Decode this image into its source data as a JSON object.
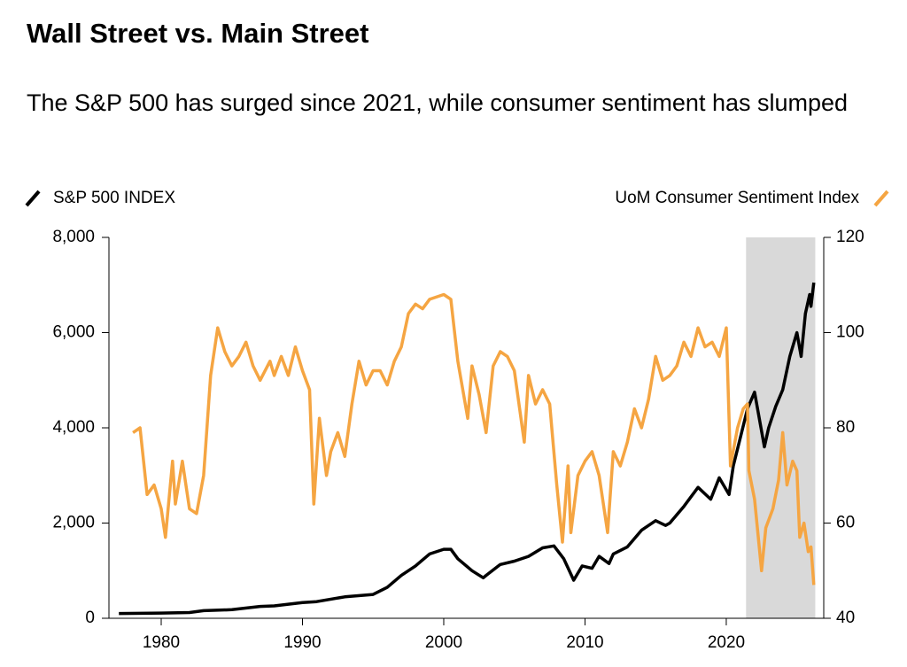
{
  "chart_data": {
    "type": "line",
    "title": "Wall Street vs. Main Street",
    "subtitle": "The S&P 500 has surged since 2021, while consumer sentiment has slumped",
    "xlim": [
      1976.3,
      2026.9
    ],
    "xticks": [
      1980,
      1990,
      2000,
      2010,
      2020
    ],
    "ylim": [
      0,
      8000
    ],
    "yticks": [
      0,
      {
        "value": 2000,
        "label": "2,000"
      },
      {
        "value": 4000,
        "label": "4,000"
      },
      {
        "value": 6000,
        "label": "6,000"
      },
      {
        "value": 8000,
        "label": "8,000"
      }
    ],
    "y2lim": [
      40,
      120
    ],
    "y2ticks": [
      40,
      60,
      80,
      100,
      120
    ],
    "shaded_xlim": [
      2021.4,
      2026.3
    ],
    "series": [
      {
        "name": "S&P 500 INDEX",
        "color": "#000000",
        "axis": "y",
        "x": [
          1977,
          1980,
          1982,
          1983,
          1985,
          1987,
          1988,
          1990,
          1991,
          1993,
          1995,
          1996,
          1997,
          1998,
          1999,
          2000,
          2000.5,
          2001,
          2002,
          2002.8,
          2003,
          2004,
          2005,
          2006,
          2007,
          2007.8,
          2008.5,
          2009.2,
          2009.8,
          2010.5,
          2011,
          2011.7,
          2012,
          2013,
          2014,
          2015,
          2015.7,
          2016,
          2017,
          2018,
          2018.9,
          2019.5,
          2020.2,
          2020.5,
          2021,
          2021.5,
          2022,
          2022.7,
          2023,
          2023.5,
          2024,
          2024.5,
          2025,
          2025.3,
          2025.6,
          2025.9,
          2026,
          2026.2
        ],
        "values": [
          100,
          110,
          120,
          160,
          180,
          250,
          260,
          330,
          350,
          450,
          500,
          650,
          900,
          1100,
          1350,
          1450,
          1450,
          1250,
          1000,
          850,
          900,
          1130,
          1200,
          1300,
          1480,
          1520,
          1250,
          800,
          1100,
          1050,
          1300,
          1150,
          1350,
          1500,
          1850,
          2050,
          1950,
          2000,
          2350,
          2750,
          2500,
          2950,
          2600,
          3200,
          3800,
          4400,
          4750,
          3600,
          4000,
          4450,
          4800,
          5500,
          6000,
          5500,
          6400,
          6800,
          6550,
          7050
        ]
      },
      {
        "name": "UoM Consumer Sentiment Index",
        "color": "#f5a542",
        "axis": "y2",
        "x": [
          1978,
          1978.5,
          1979,
          1979.5,
          1980,
          1980.3,
          1980.8,
          1981,
          1981.5,
          1982,
          1982.5,
          1983,
          1983.5,
          1984,
          1984.5,
          1985,
          1985.5,
          1986,
          1986.5,
          1987,
          1987.7,
          1988,
          1988.5,
          1989,
          1989.5,
          1990,
          1990.5,
          1990.8,
          1991.2,
          1991.7,
          1992,
          1992.5,
          1993,
          1993.5,
          1994,
          1994.5,
          1995,
          1995.5,
          1996,
          1996.5,
          1997,
          1997.5,
          1998,
          1998.5,
          1999,
          2000,
          2000.5,
          2001,
          2001.7,
          2002,
          2002.5,
          2003,
          2003.5,
          2004,
          2004.5,
          2005,
          2005.7,
          2006,
          2006.5,
          2007,
          2007.5,
          2008,
          2008.4,
          2008.8,
          2009,
          2009.5,
          2010,
          2010.5,
          2011,
          2011.6,
          2012,
          2012.5,
          2013,
          2013.5,
          2014,
          2014.5,
          2015,
          2015.5,
          2016,
          2016.5,
          2017,
          2017.5,
          2018,
          2018.5,
          2019,
          2019.5,
          2020,
          2020.3,
          2020.8,
          2021.2,
          2021.5,
          2021.6,
          2022,
          2022.5,
          2022.8,
          2023.3,
          2023.7,
          2024,
          2024.3,
          2024.7,
          2025,
          2025.2,
          2025.5,
          2025.8,
          2026,
          2026.2
        ],
        "values": [
          79,
          80,
          66,
          68,
          63,
          57,
          73,
          64,
          73,
          63,
          62,
          70,
          91,
          101,
          96,
          93,
          95,
          98,
          93,
          90,
          94,
          91,
          95,
          91,
          97,
          92,
          88,
          64,
          82,
          70,
          75,
          79,
          74,
          85,
          94,
          89,
          92,
          92,
          89,
          94,
          97,
          104,
          106,
          105,
          107,
          108,
          107,
          94,
          82,
          93,
          87,
          79,
          93,
          96,
          95,
          92,
          77,
          91,
          85,
          88,
          85,
          68,
          56,
          72,
          58,
          70,
          73,
          75,
          70,
          58,
          75,
          72,
          77,
          84,
          80,
          86,
          95,
          90,
          91,
          93,
          98,
          95,
          101,
          97,
          98,
          95,
          101,
          72,
          80,
          84,
          85,
          71,
          65,
          50,
          59,
          63,
          69,
          79,
          68,
          73,
          71,
          57,
          60,
          54,
          55,
          47
        ]
      }
    ]
  }
}
